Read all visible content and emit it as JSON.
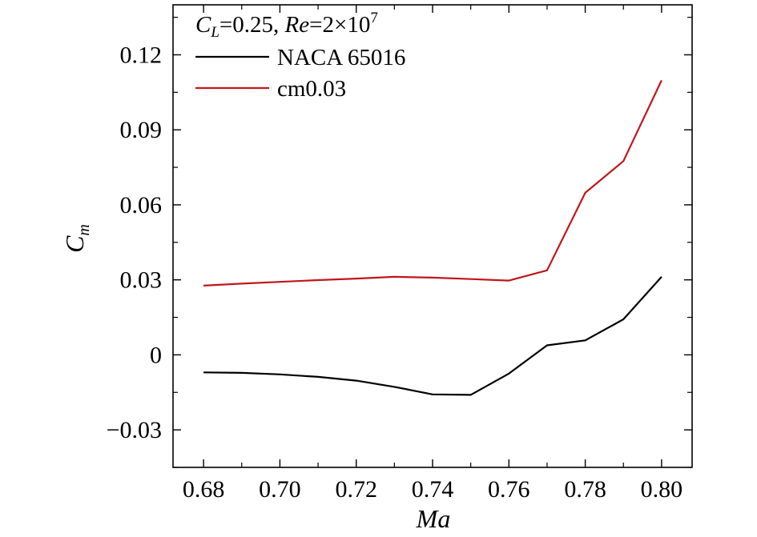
{
  "chart_data": {
    "type": "line",
    "annotation": {
      "cl_symbol": "C",
      "cl_sub": "L",
      "cl_value": "=0.25, ",
      "re_symbol": "Re",
      "re_value": "=2×10",
      "re_exp": "7"
    },
    "xlabel": "Ma",
    "ylabel_main": "C",
    "ylabel_sub": "m",
    "xlim": [
      0.672,
      0.808
    ],
    "ylim": [
      -0.045,
      0.14
    ],
    "xticks": [
      0.68,
      0.7,
      0.72,
      0.74,
      0.76,
      0.78,
      0.8
    ],
    "xtick_labels": [
      "0.68",
      "0.70",
      "0.72",
      "0.74",
      "0.76",
      "0.78",
      "0.80"
    ],
    "yticks": [
      -0.03,
      0,
      0.03,
      0.06,
      0.09,
      0.12
    ],
    "ytick_labels": [
      "−0.03",
      "0",
      "0.03",
      "0.06",
      "0.09",
      "0.12"
    ],
    "grid": false,
    "legend_position": "top-left",
    "series": [
      {
        "name": "NACA 65016",
        "color": "#000000",
        "x": [
          0.68,
          0.69,
          0.7,
          0.71,
          0.72,
          0.73,
          0.74,
          0.75,
          0.76,
          0.77,
          0.78,
          0.79,
          0.8
        ],
        "y": [
          -0.007,
          -0.0072,
          -0.0078,
          -0.0088,
          -0.0103,
          -0.0128,
          -0.0158,
          -0.016,
          -0.0075,
          0.0038,
          0.0058,
          0.0142,
          0.0312
        ]
      },
      {
        "name": "cm0.03",
        "color": "#c0161b",
        "x": [
          0.68,
          0.69,
          0.7,
          0.71,
          0.72,
          0.73,
          0.74,
          0.75,
          0.76,
          0.77,
          0.78,
          0.79,
          0.8
        ],
        "y": [
          0.0277,
          0.0285,
          0.0292,
          0.0299,
          0.0305,
          0.0312,
          0.0309,
          0.0303,
          0.0297,
          0.0338,
          0.0648,
          0.0775,
          0.1098
        ]
      }
    ]
  }
}
